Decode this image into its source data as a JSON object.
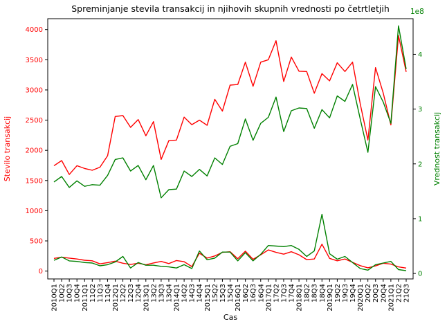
{
  "chart_data": {
    "type": "line",
    "title": "Spreminjanje stevila transakcij in njihovih skupnih vrednosti po četrtletjih",
    "xlabel": "Cas",
    "ylabel_left": "Stevilo transakcij",
    "ylabel_right": "Vrednost transakcij",
    "right_axis_multiplier": "1e8",
    "ylim_left": [
      -130,
      4180
    ],
    "ylim_right": [
      -0.1,
      4.65
    ],
    "yticks_left": [
      0,
      500,
      1000,
      1500,
      2000,
      2500,
      3000,
      3500,
      4000
    ],
    "yticks_right": [
      0,
      1,
      2,
      3,
      4
    ],
    "grid": false,
    "colors": {
      "left_axis": "#ff0000",
      "right_axis": "#008000",
      "count_series": "#ff0000",
      "value_series": "#008000"
    },
    "categories": [
      "2010Q1",
      "10Q2",
      "10Q3",
      "10Q4",
      "2011Q1",
      "11Q2",
      "11Q3",
      "11Q4",
      "2012Q1",
      "12Q2",
      "12Q3",
      "12Q4",
      "2013Q1",
      "13Q2",
      "13Q3",
      "13Q4",
      "2014Q1",
      "14Q2",
      "14Q3",
      "14Q4",
      "2015Q1",
      "15Q2",
      "15Q3",
      "15Q4",
      "2016Q1",
      "16Q2",
      "16Q3",
      "16Q4",
      "2017Q1",
      "17Q2",
      "17Q3",
      "17Q4",
      "2018Q1",
      "18Q2",
      "18Q3",
      "18Q4",
      "2019Q1",
      "19Q2",
      "19Q3",
      "19Q4",
      "2020Q1",
      "20Q2",
      "20Q3",
      "20Q4",
      "2021Q1",
      "21Q2",
      "21Q3"
    ],
    "series": [
      {
        "axis": "left",
        "color": "#ff0000",
        "values": [
          1745,
          1830,
          1600,
          1745,
          1700,
          1670,
          1720,
          1910,
          2560,
          2575,
          2380,
          2510,
          2240,
          2475,
          1850,
          2160,
          2170,
          2550,
          2425,
          2500,
          2415,
          2845,
          2650,
          3080,
          3090,
          3460,
          3060,
          3460,
          3500,
          3815,
          3140,
          3545,
          3310,
          3305,
          2945,
          3270,
          3150,
          3450,
          3305,
          3460,
          2770,
          2170,
          3370,
          2950,
          2420,
          3900,
          3300
        ]
      },
      {
        "axis": "left",
        "color": "#ff0000",
        "values": [
          210,
          230,
          215,
          200,
          180,
          170,
          120,
          140,
          165,
          130,
          110,
          130,
          105,
          135,
          160,
          125,
          175,
          155,
          75,
          295,
          215,
          250,
          310,
          320,
          205,
          330,
          195,
          270,
          350,
          310,
          280,
          320,
          270,
          190,
          200,
          445,
          210,
          170,
          200,
          145,
          90,
          55,
          85,
          130,
          115,
          70,
          50
        ]
      },
      {
        "axis": "right",
        "color": "#008000",
        "values": [
          1.67,
          1.77,
          1.57,
          1.69,
          1.59,
          1.62,
          1.61,
          1.79,
          2.08,
          2.11,
          1.87,
          1.97,
          1.71,
          1.97,
          1.38,
          1.53,
          1.54,
          1.87,
          1.77,
          1.9,
          1.78,
          2.11,
          1.99,
          2.32,
          2.37,
          2.82,
          2.43,
          2.74,
          2.85,
          3.22,
          2.59,
          2.97,
          3.02,
          3.01,
          2.65,
          2.99,
          2.84,
          3.24,
          3.14,
          3.45,
          2.82,
          2.21,
          3.41,
          3.13,
          2.74,
          4.52,
          3.73
        ]
      },
      {
        "axis": "right",
        "color": "#008000",
        "values": [
          0.24,
          0.3,
          0.23,
          0.22,
          0.2,
          0.19,
          0.14,
          0.16,
          0.21,
          0.31,
          0.1,
          0.2,
          0.15,
          0.15,
          0.13,
          0.12,
          0.1,
          0.16,
          0.09,
          0.41,
          0.25,
          0.28,
          0.39,
          0.39,
          0.23,
          0.38,
          0.23,
          0.35,
          0.51,
          0.5,
          0.49,
          0.51,
          0.44,
          0.31,
          0.41,
          1.08,
          0.36,
          0.26,
          0.31,
          0.2,
          0.09,
          0.06,
          0.16,
          0.19,
          0.22,
          0.07,
          0.05
        ]
      }
    ]
  }
}
